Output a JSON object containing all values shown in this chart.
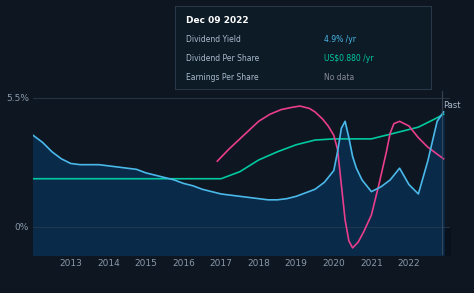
{
  "background_color": "#0e1621",
  "plot_bg_color": "#0e1621",
  "ylabel_55": "5.5%",
  "ylabel_0": "0%",
  "x_ticks": [
    2013,
    2014,
    2015,
    2016,
    2017,
    2018,
    2019,
    2020,
    2021,
    2022
  ],
  "past_label": "Past",
  "tooltip_title": "Dec 09 2022",
  "legend": [
    {
      "label": "Dividend Yield",
      "color": "#4ab8e8"
    },
    {
      "label": "Dividend Per Share",
      "color": "#00c9a0"
    },
    {
      "label": "Earnings Per Share",
      "color": "#e83e8c"
    }
  ],
  "line_dividend_yield": {
    "color": "#4ab8e8",
    "x": [
      2012.0,
      2012.25,
      2012.5,
      2012.75,
      2013.0,
      2013.25,
      2013.5,
      2013.75,
      2014.0,
      2014.25,
      2014.5,
      2014.75,
      2015.0,
      2015.25,
      2015.5,
      2015.75,
      2016.0,
      2016.25,
      2016.5,
      2016.75,
      2017.0,
      2017.25,
      2017.5,
      2017.75,
      2018.0,
      2018.25,
      2018.5,
      2018.75,
      2019.0,
      2019.25,
      2019.5,
      2019.75,
      2020.0,
      2020.1,
      2020.2,
      2020.3,
      2020.4,
      2020.5,
      2020.6,
      2020.75,
      2021.0,
      2021.25,
      2021.5,
      2021.75,
      2022.0,
      2022.25,
      2022.5,
      2022.75,
      2022.92
    ],
    "y": [
      3.9,
      3.6,
      3.2,
      2.9,
      2.7,
      2.65,
      2.65,
      2.65,
      2.6,
      2.55,
      2.5,
      2.45,
      2.3,
      2.2,
      2.1,
      2.0,
      1.85,
      1.75,
      1.6,
      1.5,
      1.4,
      1.35,
      1.3,
      1.25,
      1.2,
      1.15,
      1.15,
      1.2,
      1.3,
      1.45,
      1.6,
      1.9,
      2.4,
      3.2,
      4.2,
      4.5,
      3.8,
      3.0,
      2.5,
      2.0,
      1.5,
      1.7,
      2.0,
      2.5,
      1.8,
      1.4,
      2.8,
      4.5,
      4.9
    ]
  },
  "line_dividend_per_share": {
    "color": "#00c9a0",
    "x": [
      2012.0,
      2012.5,
      2013.0,
      2013.5,
      2014.0,
      2014.5,
      2015.0,
      2015.5,
      2015.75,
      2016.0,
      2016.25,
      2016.5,
      2016.75,
      2017.0,
      2017.5,
      2018.0,
      2018.5,
      2019.0,
      2019.5,
      2020.0,
      2020.5,
      2021.0,
      2021.25,
      2021.5,
      2021.75,
      2022.0,
      2022.25,
      2022.5,
      2022.75,
      2022.92
    ],
    "y": [
      2.05,
      2.05,
      2.05,
      2.05,
      2.05,
      2.05,
      2.05,
      2.05,
      2.05,
      2.05,
      2.05,
      2.05,
      2.05,
      2.05,
      2.35,
      2.85,
      3.2,
      3.5,
      3.7,
      3.75,
      3.75,
      3.75,
      3.85,
      3.95,
      4.05,
      4.15,
      4.25,
      4.45,
      4.65,
      4.8
    ]
  },
  "line_earnings_per_share": {
    "color": "#e83e8c",
    "x": [
      2016.9,
      2017.2,
      2017.5,
      2017.8,
      2018.0,
      2018.3,
      2018.6,
      2018.9,
      2019.1,
      2019.35,
      2019.5,
      2019.7,
      2019.85,
      2020.0,
      2020.1,
      2020.2,
      2020.3,
      2020.4,
      2020.5,
      2020.65,
      2020.8,
      2021.0,
      2021.2,
      2021.4,
      2021.5,
      2021.6,
      2021.75,
      2022.0,
      2022.25,
      2022.5,
      2022.75,
      2022.92
    ],
    "y": [
      2.8,
      3.3,
      3.75,
      4.2,
      4.5,
      4.8,
      5.0,
      5.1,
      5.15,
      5.05,
      4.9,
      4.6,
      4.3,
      3.9,
      3.3,
      1.8,
      0.3,
      -0.6,
      -0.9,
      -0.65,
      -0.2,
      0.5,
      1.8,
      3.2,
      4.0,
      4.4,
      4.5,
      4.3,
      3.8,
      3.4,
      3.1,
      2.9
    ]
  },
  "fill_color": "#0a2a4a",
  "xmin": 2012.0,
  "xmax": 2023.1,
  "ymin": -1.2,
  "ymax": 5.8,
  "plot_ymin": -1.0,
  "plot_ymax": 5.6
}
